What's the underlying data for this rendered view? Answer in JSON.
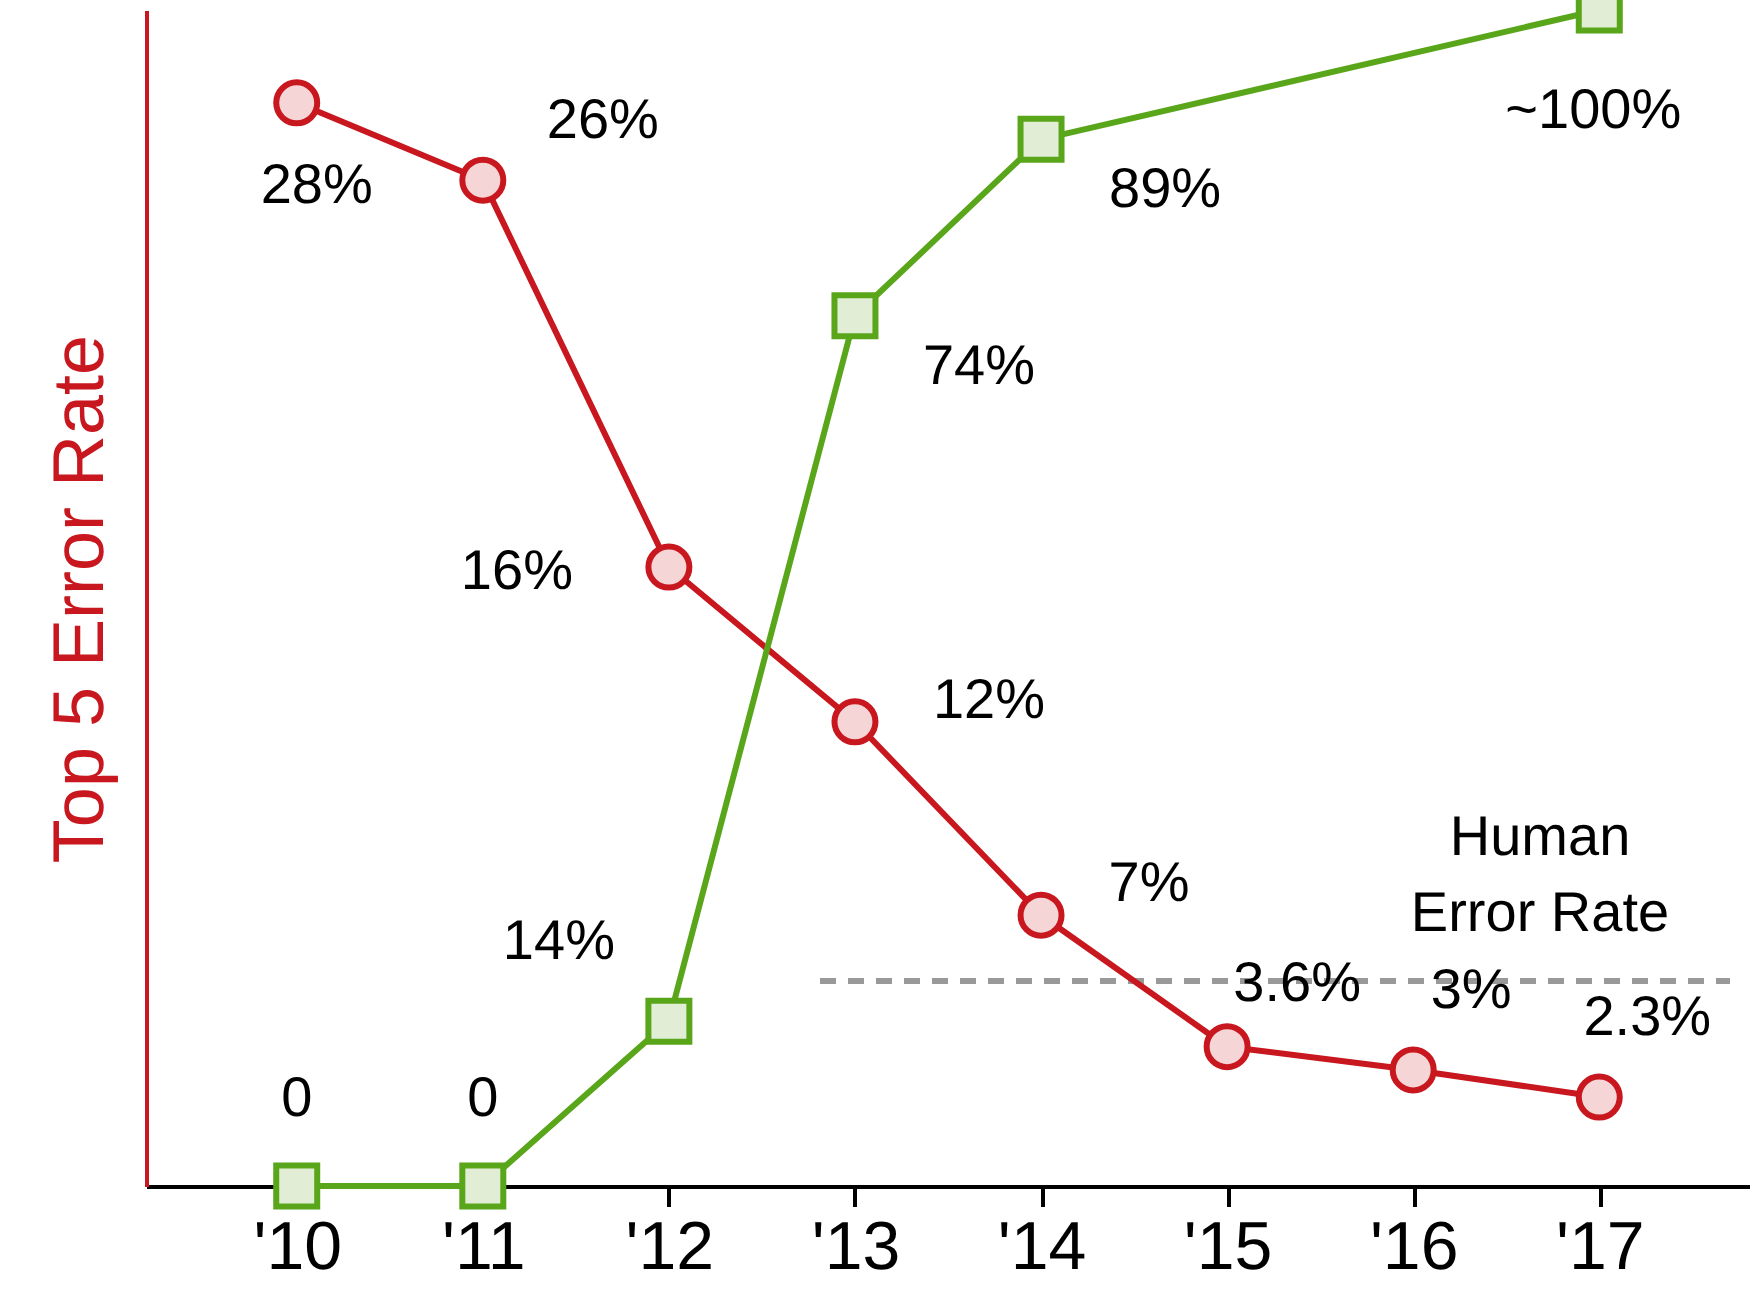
{
  "chart_data": {
    "type": "line",
    "ylabel": "Top 5 Error Rate",
    "categories": [
      "'10",
      "'11",
      "'12",
      "'13",
      "'14",
      "'15",
      "'16",
      "'17"
    ],
    "ylim": [
      0,
      30.4
    ],
    "tick_labels": "x",
    "series": [
      {
        "color": "#c8171e",
        "marker": "circle",
        "values": [
          28,
          26,
          16,
          12,
          7,
          3.6,
          3,
          2.3
        ],
        "value_labels": [
          "28%",
          "26%",
          "16%",
          "12%",
          "7%",
          "3.6%",
          "3%",
          "2.3%"
        ]
      },
      {
        "color": "#5aa61b",
        "marker": "square",
        "axis": "y2",
        "x": [
          "'10",
          "'11",
          "'12",
          "'13",
          "'14",
          "'17"
        ],
        "values": [
          0,
          0,
          14,
          74,
          89,
          100
        ],
        "value_labels": [
          "0",
          "0",
          "14%",
          "74%",
          "89%",
          "~100%"
        ]
      }
    ],
    "ref_lines": [
      {
        "axis": "y",
        "value": 5.3,
        "label": "Human\nError Rate",
        "color": "#999999",
        "line_style": "dashed"
      }
    ]
  }
}
